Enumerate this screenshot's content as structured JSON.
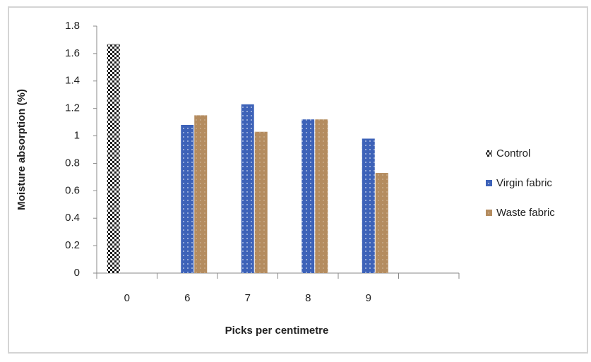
{
  "chart_data": {
    "type": "bar",
    "x_label": "Picks per centimetre",
    "y_label": "Moisture absorption (%)",
    "categories": [
      "0",
      "6",
      "7",
      "8",
      "9",
      null
    ],
    "series": [
      {
        "name": "Control",
        "color": "#1e1e1e",
        "values": [
          1.67,
          null,
          null,
          null,
          null,
          null
        ]
      },
      {
        "name": "Virgin fabric",
        "color": "#3d62b8",
        "values": [
          null,
          1.08,
          1.23,
          1.12,
          0.98,
          null
        ]
      },
      {
        "name": "Waste fabric",
        "color": "#b48c5f",
        "values": [
          null,
          1.15,
          1.03,
          1.12,
          0.73,
          null
        ]
      }
    ],
    "ylim": [
      0,
      1.8
    ],
    "yticks": [
      0,
      0.2,
      0.4,
      0.6,
      0.8,
      1,
      1.2,
      1.4,
      1.6,
      1.8
    ],
    "legend": "right"
  }
}
